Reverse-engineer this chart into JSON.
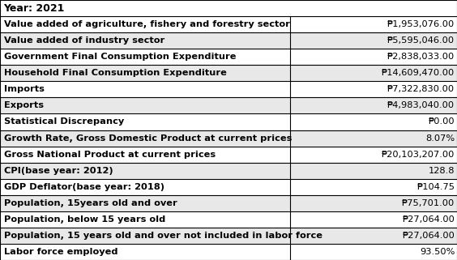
{
  "title": "Year: 2021",
  "rows": [
    [
      "Value added of agriculture, fishery and forestry sector",
      "₱1,953,076.00"
    ],
    [
      "Value added of industry sector",
      "₱5,595,046.00"
    ],
    [
      "Government Final Consumption Expenditure",
      "₱2,838,033.00"
    ],
    [
      "Household Final Consumption Expenditure",
      "₱14,609,470.00"
    ],
    [
      "Imports",
      "₱7,322,830.00"
    ],
    [
      "Exports",
      "₱4,983,040.00"
    ],
    [
      "Statistical Discrepancy",
      "₱0.00"
    ],
    [
      "Growth Rate, Gross Domestic Product at current prices",
      "8.07%"
    ],
    [
      "Gross National Product at current prices",
      "₱20,103,207.00"
    ],
    [
      "CPI(base year: 2012)",
      "128.8"
    ],
    [
      "GDP Deflator(base year: 2018)",
      "₱104.75"
    ],
    [
      "Population, 15years old and over",
      "₱75,701.00"
    ],
    [
      "Population, below 15 years old",
      "₱27,064.00"
    ],
    [
      "Population, 15 years old and over not included in labor force",
      "₱27,064.00"
    ],
    [
      "Labor force employed",
      "93.50%"
    ]
  ],
  "col_split": 0.635,
  "border_color": "#000000",
  "text_color": "#000000",
  "font_size": 8.2,
  "title_font_size": 9.0,
  "row_colors": [
    "#ffffff",
    "#e8e8e8"
  ]
}
